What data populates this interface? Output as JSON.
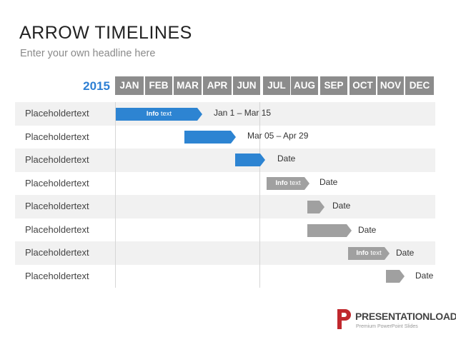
{
  "header": {
    "title": "ARROW TIMELINES",
    "subtitle": "Enter your own headline here"
  },
  "timeline": {
    "year": "2015",
    "months": [
      "JAN",
      "FEB",
      "MAR",
      "APR",
      "JUN",
      "JUL",
      "AUG",
      "SEP",
      "OCT",
      "NOV",
      "DEC"
    ],
    "rows": [
      {
        "label": "Placeholdertext",
        "bar_label": "Info",
        "bar_label_rest": " text",
        "date": "Jan 1 – Mar 15"
      },
      {
        "label": "Placeholdertext",
        "date": "Mar 05 – Apr 29"
      },
      {
        "label": "Placeholdertext",
        "date": "Date"
      },
      {
        "label": "Placeholdertext",
        "bar_label": "Info",
        "bar_label_rest": " text",
        "date": "Date"
      },
      {
        "label": "Placeholdertext",
        "date": "Date"
      },
      {
        "label": "Placeholdertext",
        "date": "Date"
      },
      {
        "label": "Placeholdertext",
        "bar_label": "Info",
        "bar_label_rest": " text",
        "date": "Date"
      },
      {
        "label": "Placeholdertext",
        "date": "Date"
      }
    ],
    "colors": {
      "accent": "#2d84d2",
      "bar_gray": "#a0a0a0",
      "month_header": "#8c8c8c"
    }
  },
  "brand": {
    "name": "PRESENTATIONLOAD",
    "tagline": "Premium PowerPoint Slides",
    "registered": "®",
    "color": "#c0282d"
  }
}
